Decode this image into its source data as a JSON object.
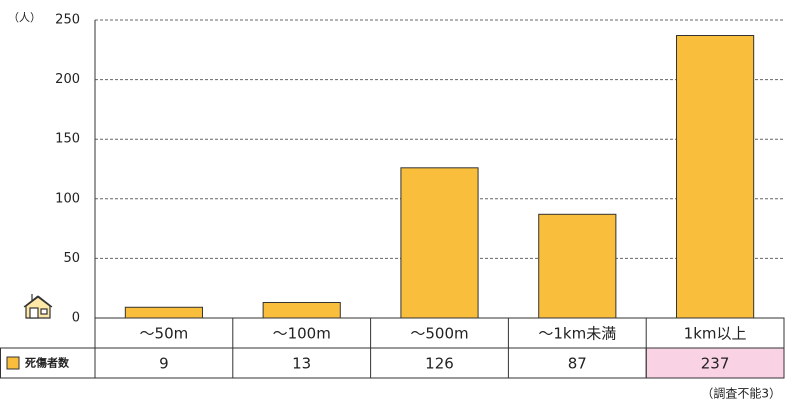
{
  "chart_data": {
    "type": "bar",
    "y_axis_label": "（人）",
    "categories": [
      "～50m",
      "～100m",
      "～500m",
      "～1km未満",
      "1km以上"
    ],
    "series": [
      {
        "name": "死傷者数",
        "color": "#f9bf3c",
        "values": [
          9,
          13,
          126,
          87,
          237
        ]
      }
    ],
    "ylim": [
      0,
      250
    ],
    "yticks": [
      0,
      50,
      100,
      150,
      200,
      250
    ],
    "grid": true,
    "note": "（調査不能3）"
  }
}
